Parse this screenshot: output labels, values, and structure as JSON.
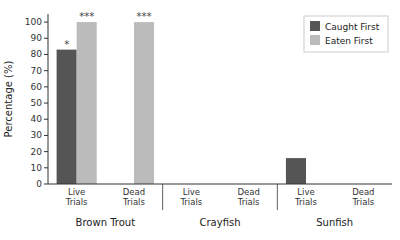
{
  "chart_data": {
    "type": "bar",
    "categories": [
      "Live Trials",
      "Dead Trials",
      "Live Trials",
      "Dead Trials",
      "Live Trials",
      "Dead Trials"
    ],
    "groups": [
      "Brown Trout",
      "Crayfish",
      "Sunfish"
    ],
    "series": [
      {
        "name": "Caught First",
        "color": "#555555",
        "values": [
          83,
          0,
          0,
          0,
          16,
          0
        ],
        "annotations": [
          {
            "index": 0,
            "text": "*"
          }
        ]
      },
      {
        "name": "Eaten First",
        "color": "#bbbbbb",
        "values": [
          100,
          100,
          0,
          0,
          0,
          0
        ],
        "annotations": [
          {
            "index": 0,
            "text": "***"
          },
          {
            "index": 1,
            "text": "***"
          }
        ]
      }
    ],
    "ylabel": "Percentage (%)",
    "ylim": [
      0,
      105
    ],
    "yticks": [
      0,
      10,
      20,
      30,
      40,
      50,
      60,
      70,
      80,
      90,
      100
    ],
    "grid": false,
    "legend": "upper right"
  }
}
